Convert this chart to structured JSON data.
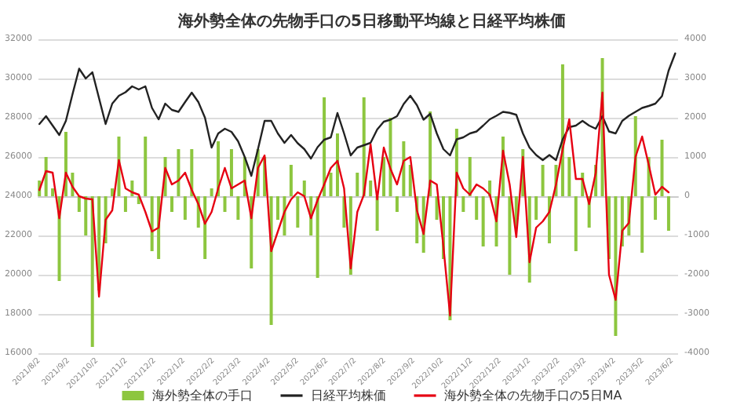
{
  "chart_data": {
    "type": "line",
    "title": "海外勢全体の先物手口の5日移動平均線と日経平均株価",
    "x": [
      "2021-08-02",
      "2021-08-09",
      "2021-08-16",
      "2021-08-23",
      "2021-08-30",
      "2021-09-06",
      "2021-09-13",
      "2021-09-20",
      "2021-09-27",
      "2021-10-04",
      "2021-10-11",
      "2021-10-18",
      "2021-10-25",
      "2021-11-01",
      "2021-11-08",
      "2021-11-15",
      "2021-11-22",
      "2021-11-29",
      "2021-12-06",
      "2021-12-13",
      "2021-12-20",
      "2021-12-27",
      "2022-01-03",
      "2022-01-10",
      "2022-01-17",
      "2022-01-24",
      "2022-01-31",
      "2022-02-07",
      "2022-02-14",
      "2022-02-21",
      "2022-02-28",
      "2022-03-07",
      "2022-03-14",
      "2022-03-21",
      "2022-03-28",
      "2022-04-04",
      "2022-04-11",
      "2022-04-18",
      "2022-04-25",
      "2022-05-02",
      "2022-05-09",
      "2022-05-16",
      "2022-05-23",
      "2022-05-30",
      "2022-06-06",
      "2022-06-13",
      "2022-06-20",
      "2022-06-27",
      "2022-07-04",
      "2022-07-11",
      "2022-07-18",
      "2022-07-25",
      "2022-08-01",
      "2022-08-08",
      "2022-08-15",
      "2022-08-22",
      "2022-08-29",
      "2022-09-05",
      "2022-09-12",
      "2022-09-19",
      "2022-09-26",
      "2022-10-03",
      "2022-10-10",
      "2022-10-17",
      "2022-10-24",
      "2022-10-31",
      "2022-11-07",
      "2022-11-14",
      "2022-11-21",
      "2022-11-28",
      "2022-12-05",
      "2022-12-12",
      "2022-12-19",
      "2022-12-26",
      "2023-01-02",
      "2023-01-09",
      "2023-01-16",
      "2023-01-23",
      "2023-01-30",
      "2023-02-06",
      "2023-02-13",
      "2023-02-20",
      "2023-02-27",
      "2023-03-06",
      "2023-03-13",
      "2023-03-20",
      "2023-03-27",
      "2023-04-03",
      "2023-04-10",
      "2023-04-17",
      "2023-04-24",
      "2023-05-01",
      "2023-05-08",
      "2023-05-15",
      "2023-05-22",
      "2023-05-29",
      "2023-06-05"
    ],
    "xlim": [
      "2021-08-01",
      "2023-06-08"
    ],
    "xticks": [
      {
        "value": "2021-08-02",
        "label": "2021/8/2"
      },
      {
        "value": "2021-09-02",
        "label": "2021/9/2"
      },
      {
        "value": "2021-10-02",
        "label": "2021/10/2"
      },
      {
        "value": "2021-11-02",
        "label": "2021/11/2"
      },
      {
        "value": "2021-12-02",
        "label": "2021/12/2"
      },
      {
        "value": "2022-01-02",
        "label": "2022/1/2"
      },
      {
        "value": "2022-02-02",
        "label": "2022/2/2"
      },
      {
        "value": "2022-03-02",
        "label": "2022/3/2"
      },
      {
        "value": "2022-04-02",
        "label": "2022/4/2"
      },
      {
        "value": "2022-05-02",
        "label": "2022/5/2"
      },
      {
        "value": "2022-06-02",
        "label": "2022/6/2"
      },
      {
        "value": "2022-07-02",
        "label": "2022/7/2"
      },
      {
        "value": "2022-08-02",
        "label": "2022/8/2"
      },
      {
        "value": "2022-09-02",
        "label": "2022/9/2"
      },
      {
        "value": "2022-10-02",
        "label": "2022/10/2"
      },
      {
        "value": "2022-11-02",
        "label": "2022/11/2"
      },
      {
        "value": "2022-12-02",
        "label": "2022/12/2"
      },
      {
        "value": "2023-01-02",
        "label": "2023/1/2"
      },
      {
        "value": "2023-02-02",
        "label": "2023/2/2"
      },
      {
        "value": "2023-03-02",
        "label": "2023/3/2"
      },
      {
        "value": "2023-04-02",
        "label": "2023/4/2"
      },
      {
        "value": "2023-05-02",
        "label": "2023/5/2"
      },
      {
        "value": "2023-06-02",
        "label": "2023/6/2"
      }
    ],
    "ylim": [
      16000,
      32000
    ],
    "yticks": [
      16000,
      18000,
      20000,
      22000,
      24000,
      26000,
      28000,
      30000,
      32000
    ],
    "y2lim": [
      -4000,
      4000
    ],
    "y2ticks": [
      -4000,
      -3000,
      -2000,
      -1000,
      0,
      1000,
      2000,
      3000,
      4000
    ],
    "grid": "y",
    "legend": "bottom",
    "marker": "none",
    "line_style": "solid",
    "series": [
      {
        "name": "海外勢全体の手口",
        "type": "bar",
        "axis": "y2",
        "color": "#8dc63f",
        "values": [
          400,
          1000,
          200,
          -2160,
          1640,
          600,
          -400,
          -1000,
          -3840,
          -2400,
          -1200,
          200,
          1520,
          -400,
          400,
          -200,
          1520,
          -1400,
          -1600,
          1000,
          -400,
          1200,
          -600,
          1200,
          -800,
          -1600,
          200,
          1400,
          -400,
          1200,
          -600,
          1000,
          -1840,
          1200,
          1000,
          -3280,
          -600,
          -1000,
          800,
          -800,
          400,
          -1000,
          -2080,
          2520,
          600,
          1600,
          -800,
          -2000,
          600,
          2520,
          400,
          -880,
          1000,
          2000,
          -400,
          1400,
          800,
          -1200,
          -1440,
          2160,
          -600,
          -1600,
          -3160,
          1720,
          -400,
          1000,
          -600,
          -1280,
          400,
          -1280,
          1520,
          -2000,
          -800,
          1200,
          -2200,
          -600,
          800,
          -1200,
          800,
          3360,
          1000,
          -1400,
          600,
          -800,
          800,
          3520,
          -1600,
          -3560,
          -1280,
          -1000,
          2040,
          -1440,
          1000,
          -600,
          1440,
          -880,
          null
        ]
      },
      {
        "name": "日経平均株価",
        "axis": "y",
        "color": "#222222",
        "values": [
          27680,
          28080,
          27600,
          27120,
          27840,
          29200,
          30500,
          30000,
          30320,
          29000,
          27680,
          28720,
          29120,
          29300,
          29600,
          29440,
          29600,
          28500,
          27920,
          28720,
          28400,
          28300,
          28800,
          29280,
          28800,
          28000,
          26480,
          27200,
          27440,
          27280,
          26800,
          26000,
          25040,
          26400,
          27840,
          27840,
          27200,
          26720,
          27120,
          26700,
          26400,
          25920,
          26500,
          26880,
          27000,
          28240,
          27200,
          26080,
          26480,
          26600,
          26720,
          27400,
          27800,
          27900,
          28080,
          28700,
          29120,
          28640,
          27900,
          28200,
          27200,
          26400,
          26080,
          26900,
          27000,
          27200,
          27300,
          27600,
          27920,
          28100,
          28300,
          28250,
          28150,
          27200,
          26480,
          26100,
          25840,
          26100,
          25840,
          26900,
          27520,
          27600,
          27840,
          27600,
          27440,
          28080,
          27300,
          27200,
          27840,
          28100,
          28300,
          28500,
          28600,
          28720,
          29100,
          30400,
          31280
        ]
      },
      {
        "name": "海外勢全体の先物手口の5日MA",
        "axis": "y2",
        "color": "#e60012",
        "values": [
          160,
          640,
          600,
          -560,
          600,
          240,
          0,
          -60,
          -80,
          -2560,
          -600,
          -360,
          920,
          200,
          100,
          40,
          -400,
          -900,
          -800,
          720,
          300,
          400,
          600,
          160,
          -200,
          -700,
          -400,
          200,
          720,
          200,
          300,
          400,
          -560,
          720,
          1040,
          -1400,
          -900,
          -400,
          -80,
          100,
          0,
          -560,
          -100,
          300,
          720,
          900,
          200,
          -1840,
          -400,
          40,
          1320,
          -80,
          1240,
          700,
          300,
          900,
          1000,
          -360,
          -960,
          400,
          300,
          -1280,
          -3040,
          600,
          200,
          40,
          300,
          200,
          40,
          -640,
          1160,
          300,
          -1040,
          1000,
          -1680,
          -800,
          -640,
          -400,
          300,
          1200,
          1960,
          440,
          440,
          -200,
          600,
          2640,
          -2000,
          -2640,
          -880,
          -680,
          1000,
          1520,
          800,
          40,
          240,
          100,
          null
        ]
      }
    ]
  }
}
